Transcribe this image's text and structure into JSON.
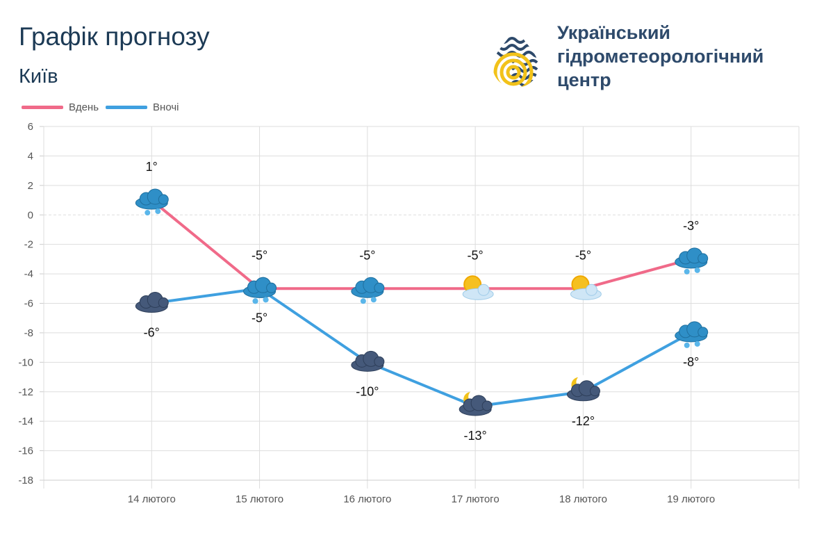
{
  "header": {
    "title": "Графік прогнозу",
    "city": "Київ"
  },
  "logo": {
    "icon": "water-drop-logo-icon",
    "org_lines": [
      "Український",
      "гідрометеорологічний",
      "центр"
    ]
  },
  "legend": {
    "day_label": "Вдень",
    "night_label": "Вночі"
  },
  "colors": {
    "day": "#f06a89",
    "night": "#3fa0e0",
    "text_dark": "#1c3a55",
    "grid": "#dddddd"
  },
  "chart_data": {
    "type": "line",
    "categories": [
      "14 лютого",
      "15 лютого",
      "16 лютого",
      "17 лютого",
      "18 лютого",
      "19 лютого"
    ],
    "series": [
      {
        "name": "Вдень",
        "values": [
          1,
          -5,
          -5,
          -5,
          -5,
          -3
        ],
        "labels": [
          "1°",
          "-5°",
          "-5°",
          "-5°",
          "-5°",
          "-3°"
        ],
        "icons": [
          "cloud-snow-icon",
          "cloud-snow-icon",
          "cloud-snow-icon",
          "sun-cloud-icon",
          "sun-cloud-icon",
          "cloud-snow-icon"
        ]
      },
      {
        "name": "Вночі",
        "values": [
          -6,
          -5,
          -10,
          -13,
          -12,
          -8
        ],
        "labels": [
          "-6°",
          "-5°",
          "-10°",
          "-13°",
          "-12°",
          "-8°"
        ],
        "icons": [
          "dark-cloud-icon",
          "cloud-snow-icon",
          "dark-cloud-icon",
          "moon-cloud-icon",
          "moon-cloud-icon",
          "cloud-snow-icon"
        ]
      }
    ],
    "ylim": [
      -18,
      6
    ],
    "yticks": [
      "6",
      "4",
      "2",
      "0",
      "-2",
      "-4",
      "-6",
      "-8",
      "-10",
      "-12",
      "-14",
      "-16",
      "-18"
    ],
    "grid": true,
    "legend_position": "top-left"
  }
}
